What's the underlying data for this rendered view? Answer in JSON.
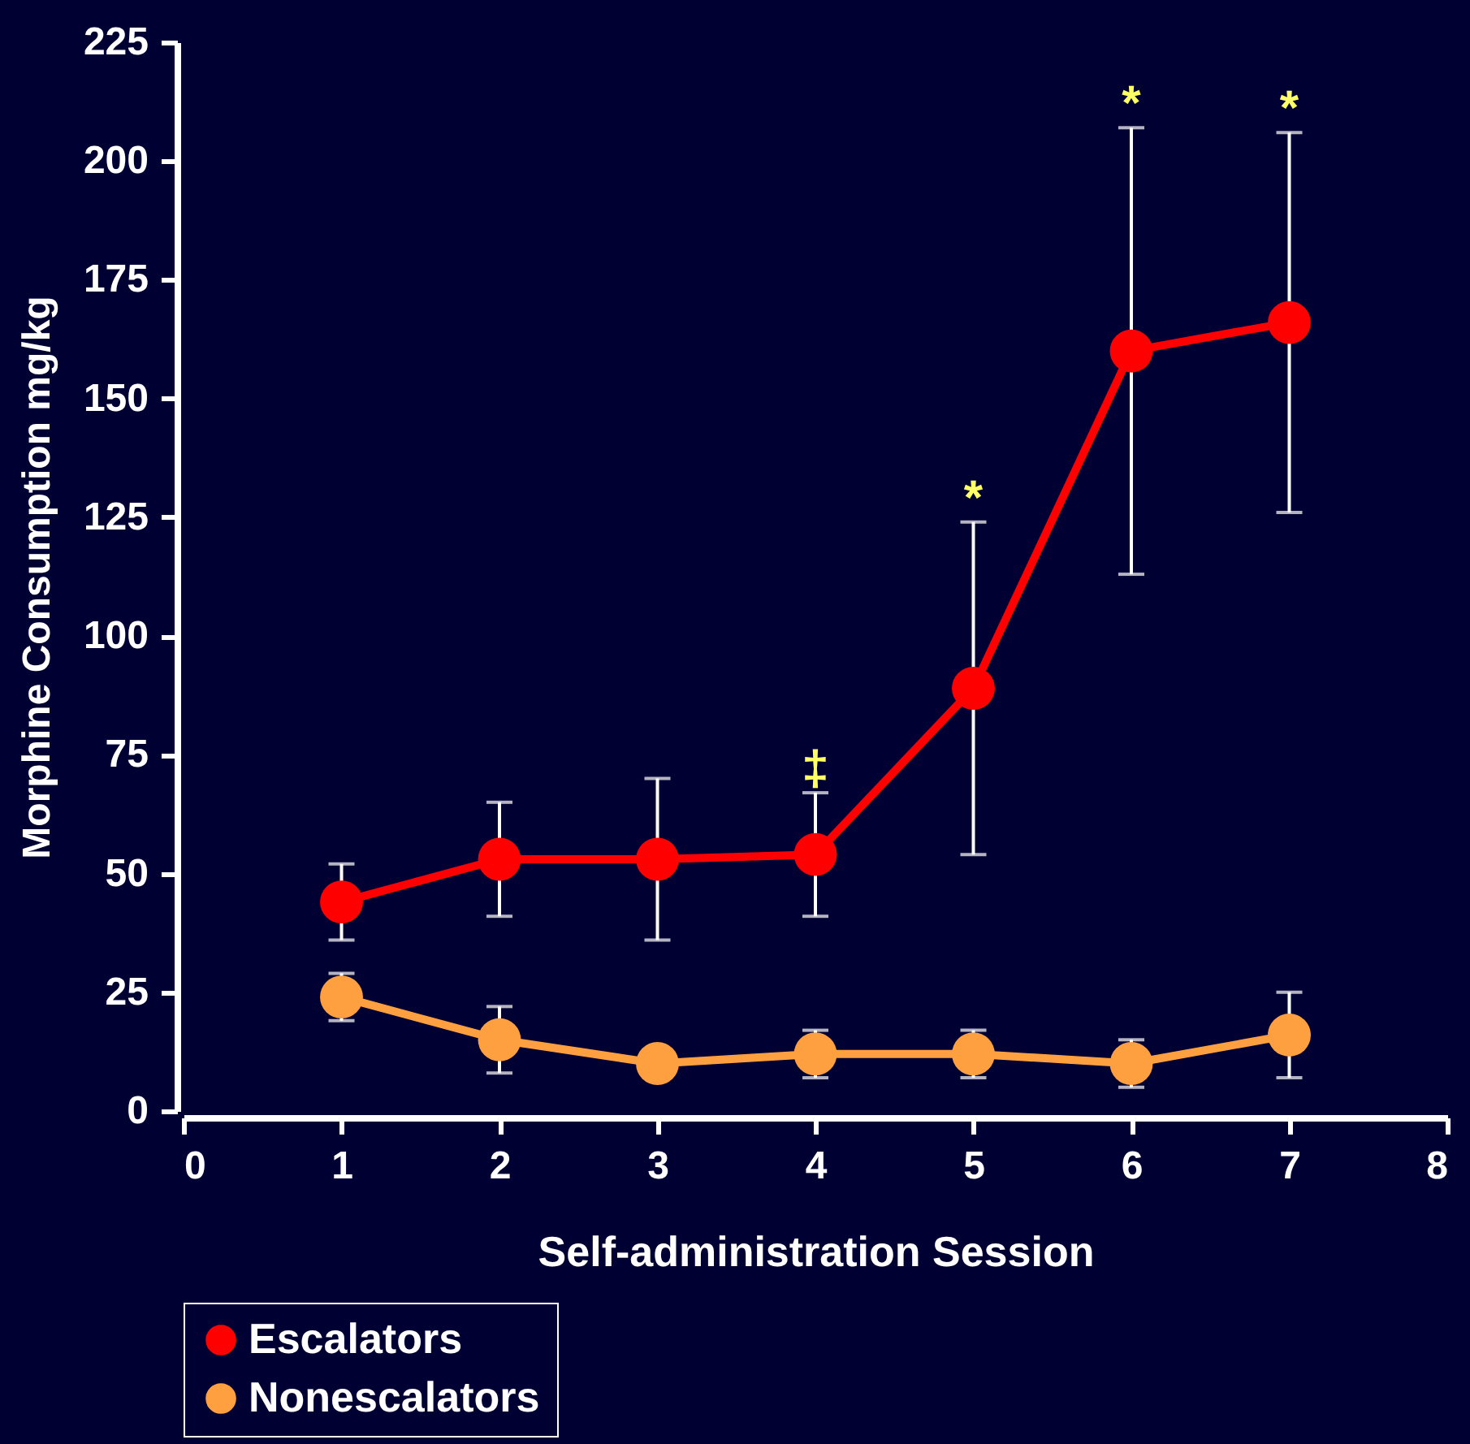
{
  "chart_data": {
    "type": "line",
    "xlabel": "Self-administration Session",
    "ylabel": "Morphine Consumption mg/kg",
    "x": [
      1,
      2,
      3,
      4,
      5,
      6,
      7
    ],
    "series": [
      {
        "name": "Escalators",
        "color": "#ff0000",
        "values": [
          44,
          53,
          53,
          54,
          89,
          160,
          166
        ],
        "errors": [
          8,
          12,
          17,
          13,
          35,
          47,
          40
        ]
      },
      {
        "name": "Nonescalators",
        "color": "#ffa040",
        "values": [
          24,
          15,
          10,
          12,
          12,
          10,
          16
        ],
        "errors": [
          5,
          7,
          null,
          5,
          5,
          5,
          9
        ]
      }
    ],
    "xlim": [
      0,
      8
    ],
    "xticks": [
      0,
      1,
      2,
      3,
      4,
      5,
      6,
      7,
      8
    ],
    "ylim": [
      0,
      225
    ],
    "yticks": [
      0,
      25,
      50,
      75,
      100,
      125,
      150,
      175,
      200,
      225
    ],
    "grid": false,
    "legend": "bottom",
    "marker": "circle",
    "line_style": "solid",
    "annotations": [
      {
        "text": "‡",
        "x": 4,
        "y": 67
      },
      {
        "text": "*",
        "x": 5,
        "y": 124
      },
      {
        "text": "*",
        "x": 6,
        "y": 207
      },
      {
        "text": "*",
        "x": 7,
        "y": 206
      }
    ]
  }
}
